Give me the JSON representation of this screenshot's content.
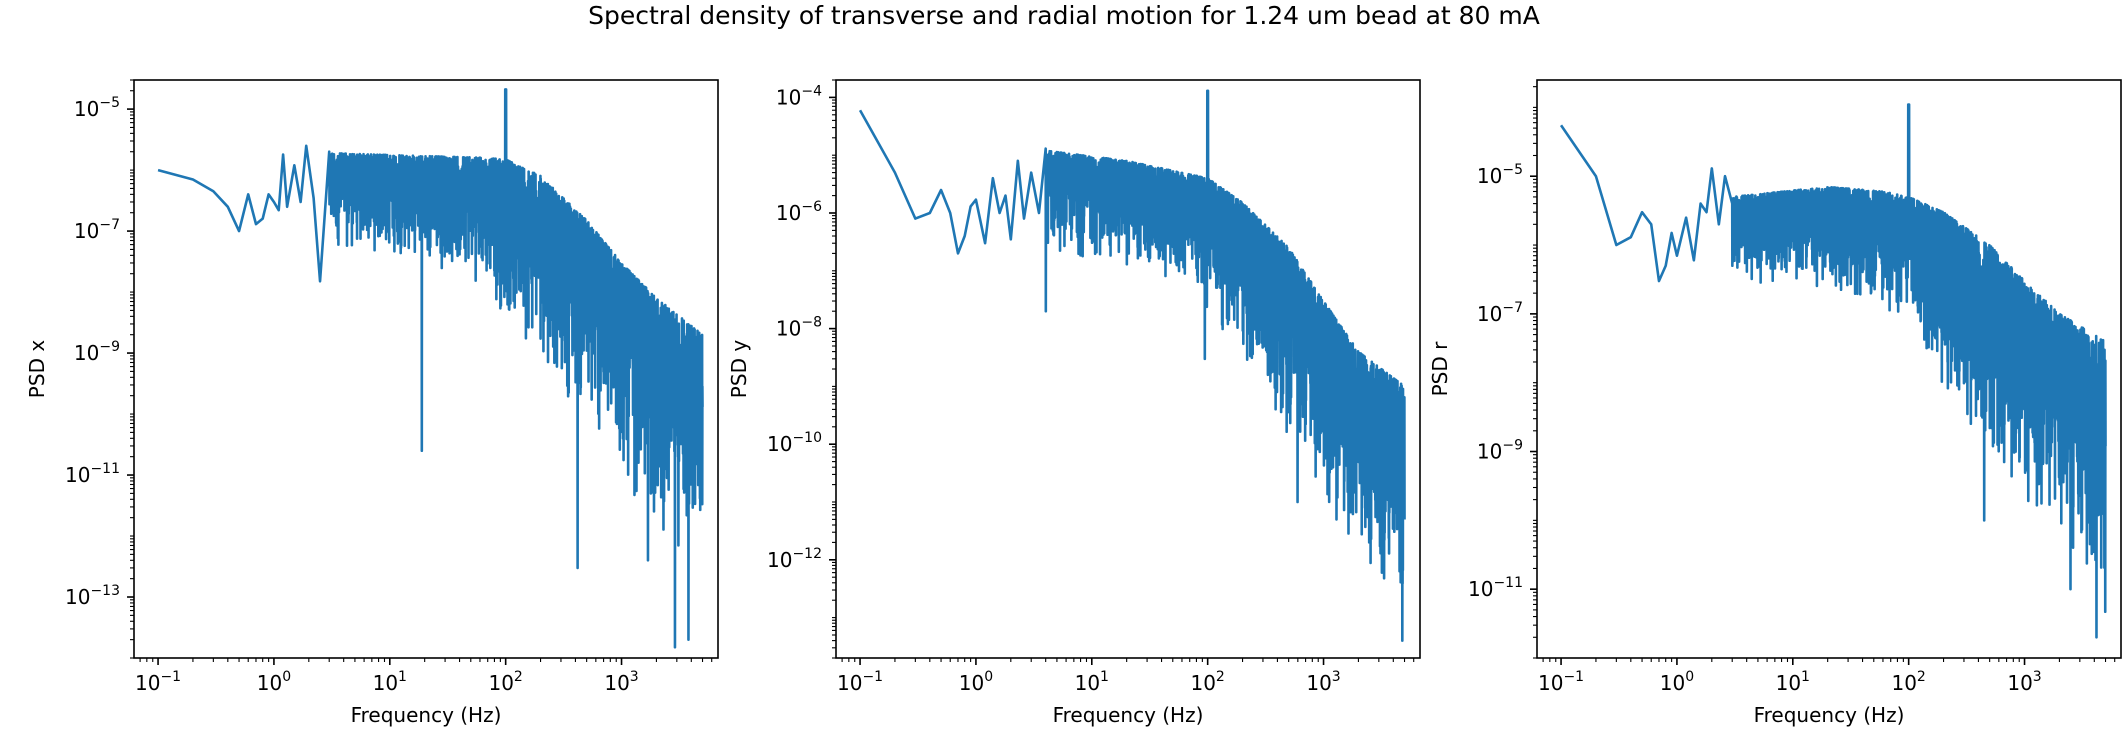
{
  "suptitle": "Spectral density of transverse and radial motion for 1.24 um bead at 80 mA",
  "colors": {
    "line": "#1f77b4",
    "axes": "#000000",
    "background": "#ffffff"
  },
  "chart_data": [
    {
      "type": "line",
      "xscale": "log",
      "yscale": "log",
      "xlabel": "Frequency (Hz)",
      "ylabel": "PSD x",
      "xlim": [
        0.062,
        6800
      ],
      "ylim": [
        1e-14,
        3e-05
      ],
      "xticks": [
        {
          "exp": -1,
          "base": "10",
          "sup": "−1"
        },
        {
          "exp": 0,
          "base": "10",
          "sup": "0"
        },
        {
          "exp": 1,
          "base": "10",
          "sup": "1"
        },
        {
          "exp": 2,
          "base": "10",
          "sup": "2"
        },
        {
          "exp": 3,
          "base": "10",
          "sup": "3"
        }
      ],
      "yticks": [
        {
          "exp": -13,
          "base": "10",
          "sup": "−13"
        },
        {
          "exp": -11,
          "base": "10",
          "sup": "−11"
        },
        {
          "exp": -9,
          "base": "10",
          "sup": "−9"
        },
        {
          "exp": -7,
          "base": "10",
          "sup": "−7"
        },
        {
          "exp": -5,
          "base": "10",
          "sup": "−5"
        }
      ],
      "series": [
        {
          "points": [
            [
              0.1,
              1e-06
            ],
            [
              0.2,
              7e-07
            ],
            [
              0.3,
              4.5e-07
            ],
            [
              0.4,
              2.5e-07
            ],
            [
              0.5,
              1e-07
            ],
            [
              0.6,
              4e-07
            ],
            [
              0.7,
              1.3e-07
            ],
            [
              0.8,
              1.6e-07
            ],
            [
              0.9,
              4e-07
            ],
            [
              1.0,
              3e-07
            ],
            [
              1.1,
              2.2e-07
            ],
            [
              1.2,
              1.8e-06
            ],
            [
              1.3,
              2.5e-07
            ],
            [
              1.5,
              1.2e-06
            ],
            [
              1.7,
              3e-07
            ],
            [
              1.9,
              2.5e-06
            ],
            [
              2.2,
              3.5e-07
            ],
            [
              2.5,
              1.5e-08
            ],
            [
              3.0,
              2e-06
            ]
          ],
          "shape": {
            "peak_hz": 100,
            "peak_value": 2.1e-05,
            "upper": [
              [
                3,
                1.9e-06
              ],
              [
                20,
                1.7e-06
              ],
              [
                60,
                1.6e-06
              ],
              [
                100,
                1.5e-06
              ],
              [
                200,
                8e-07
              ],
              [
                500,
                1.5e-07
              ],
              [
                1000,
                3e-08
              ],
              [
                2000,
                8e-09
              ],
              [
                5000,
                2e-09
              ]
            ],
            "lower": [
              [
                3,
                5e-08
              ],
              [
                20,
                3e-08
              ],
              [
                60,
                1.2e-08
              ],
              [
                100,
                3e-09
              ],
              [
                200,
                8e-10
              ],
              [
                500,
                5e-11
              ],
              [
                1000,
                6e-12
              ],
              [
                2000,
                1e-12
              ],
              [
                5000,
                2e-13
              ]
            ],
            "spikes": [
              [
                19,
                2.5e-11
              ],
              [
                420,
                3e-13
              ],
              [
                1700,
                4e-13
              ],
              [
                2900,
                1.5e-14
              ],
              [
                3800,
                2e-14
              ]
            ]
          }
        }
      ]
    },
    {
      "type": "line",
      "xscale": "log",
      "yscale": "log",
      "xlabel": "Frequency (Hz)",
      "ylabel": "PSD y",
      "xlim": [
        0.062,
        6800
      ],
      "ylim": [
        2e-14,
        0.0002
      ],
      "xticks": [
        {
          "exp": -1,
          "base": "10",
          "sup": "−1"
        },
        {
          "exp": 0,
          "base": "10",
          "sup": "0"
        },
        {
          "exp": 1,
          "base": "10",
          "sup": "1"
        },
        {
          "exp": 2,
          "base": "10",
          "sup": "2"
        },
        {
          "exp": 3,
          "base": "10",
          "sup": "3"
        }
      ],
      "yticks": [
        {
          "exp": -12,
          "base": "10",
          "sup": "−12"
        },
        {
          "exp": -10,
          "base": "10",
          "sup": "−10"
        },
        {
          "exp": -8,
          "base": "10",
          "sup": "−8"
        },
        {
          "exp": -6,
          "base": "10",
          "sup": "−6"
        },
        {
          "exp": -4,
          "base": "10",
          "sup": "−4"
        }
      ],
      "series": [
        {
          "points": [
            [
              0.1,
              6e-05
            ],
            [
              0.2,
              5e-06
            ],
            [
              0.3,
              8e-07
            ],
            [
              0.4,
              1e-06
            ],
            [
              0.5,
              2.5e-06
            ],
            [
              0.6,
              1e-06
            ],
            [
              0.7,
              2e-07
            ],
            [
              0.8,
              4e-07
            ],
            [
              0.9,
              1.3e-06
            ],
            [
              1.0,
              1.7e-06
            ],
            [
              1.2,
              3e-07
            ],
            [
              1.4,
              4e-06
            ],
            [
              1.6,
              1e-06
            ],
            [
              1.8,
              2e-06
            ],
            [
              2.0,
              3.5e-07
            ],
            [
              2.3,
              8e-06
            ],
            [
              2.6,
              8e-07
            ],
            [
              3.0,
              5e-06
            ],
            [
              3.5,
              1e-06
            ],
            [
              4.0,
              1.3e-05
            ]
          ],
          "shape": {
            "peak_hz": 100,
            "peak_value": 0.00013,
            "upper": [
              [
                4,
                1.2e-05
              ],
              [
                20,
                8e-06
              ],
              [
                60,
                5e-06
              ],
              [
                100,
                4e-06
              ],
              [
                200,
                1.5e-06
              ],
              [
                500,
                2.5e-07
              ],
              [
                1000,
                3e-08
              ],
              [
                2000,
                4e-09
              ],
              [
                5000,
                1e-09
              ]
            ],
            "lower": [
              [
                4,
                2e-07
              ],
              [
                20,
                1e-07
              ],
              [
                60,
                5e-08
              ],
              [
                100,
                2e-08
              ],
              [
                200,
                2e-09
              ],
              [
                500,
                1e-10
              ],
              [
                1000,
                1e-11
              ],
              [
                2000,
                1e-12
              ],
              [
                5000,
                1e-13
              ]
            ],
            "spikes": [
              [
                4,
                2e-08
              ],
              [
                95,
                3e-09
              ],
              [
                600,
                1e-11
              ],
              [
                1300,
                5e-12
              ],
              [
                3200,
                6e-13
              ],
              [
                4800,
                4e-14
              ]
            ]
          }
        }
      ]
    },
    {
      "type": "line",
      "xscale": "log",
      "yscale": "log",
      "xlabel": "Frequency (Hz)",
      "ylabel": "PSD r",
      "xlim": [
        0.062,
        6800
      ],
      "ylim": [
        1e-12,
        0.00025
      ],
      "xticks": [
        {
          "exp": -1,
          "base": "10",
          "sup": "−1"
        },
        {
          "exp": 0,
          "base": "10",
          "sup": "0"
        },
        {
          "exp": 1,
          "base": "10",
          "sup": "1"
        },
        {
          "exp": 2,
          "base": "10",
          "sup": "2"
        },
        {
          "exp": 3,
          "base": "10",
          "sup": "3"
        }
      ],
      "yticks": [
        {
          "exp": -11,
          "base": "10",
          "sup": "−11"
        },
        {
          "exp": -9,
          "base": "10",
          "sup": "−9"
        },
        {
          "exp": -7,
          "base": "10",
          "sup": "−7"
        },
        {
          "exp": -5,
          "base": "10",
          "sup": "−5"
        }
      ],
      "series": [
        {
          "points": [
            [
              0.1,
              5.5e-05
            ],
            [
              0.2,
              1e-05
            ],
            [
              0.3,
              1e-06
            ],
            [
              0.4,
              1.3e-06
            ],
            [
              0.5,
              3e-06
            ],
            [
              0.6,
              2e-06
            ],
            [
              0.7,
              3e-07
            ],
            [
              0.8,
              5e-07
            ],
            [
              0.9,
              1.5e-06
            ],
            [
              1.0,
              7e-07
            ],
            [
              1.2,
              2.5e-06
            ],
            [
              1.4,
              6e-07
            ],
            [
              1.6,
              4e-06
            ],
            [
              1.8,
              3e-06
            ],
            [
              2.0,
              1.3e-05
            ],
            [
              2.3,
              2e-06
            ],
            [
              2.6,
              1e-05
            ],
            [
              3.0,
              4e-06
            ]
          ],
          "shape": {
            "peak_hz": 100,
            "peak_value": 0.00011,
            "upper": [
              [
                3,
                5e-06
              ],
              [
                20,
                7e-06
              ],
              [
                60,
                6e-06
              ],
              [
                100,
                5e-06
              ],
              [
                200,
                3e-06
              ],
              [
                500,
                1e-06
              ],
              [
                1000,
                3e-07
              ],
              [
                2000,
                1e-07
              ],
              [
                5000,
                4e-08
              ]
            ],
            "lower": [
              [
                3,
                3e-07
              ],
              [
                20,
                2e-07
              ],
              [
                60,
                1e-07
              ],
              [
                100,
                5e-08
              ],
              [
                200,
                6e-09
              ],
              [
                500,
                5e-10
              ],
              [
                1000,
                1e-10
              ],
              [
                2000,
                3e-11
              ],
              [
                5000,
                3e-12
              ]
            ],
            "spikes": [
              [
                3,
                5e-07
              ],
              [
                450,
                1e-10
              ],
              [
                2500,
                1e-11
              ],
              [
                4200,
                2e-12
              ]
            ]
          }
        }
      ]
    }
  ]
}
